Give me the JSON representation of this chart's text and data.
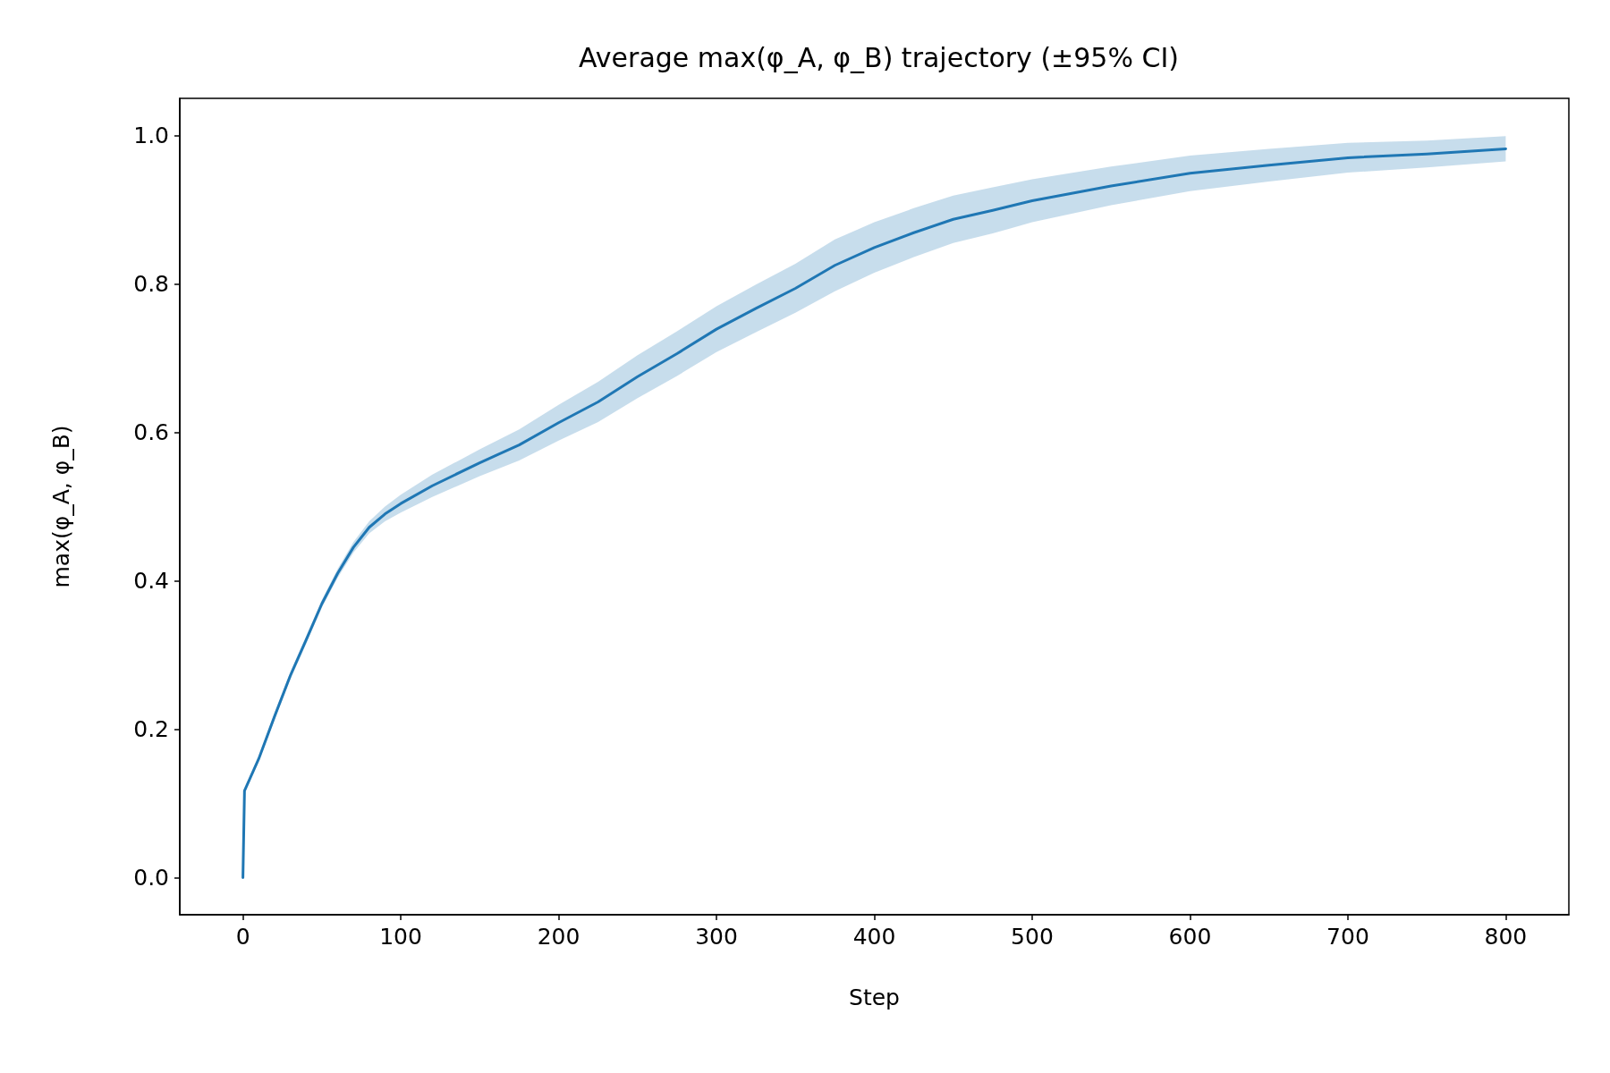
{
  "chart_data": {
    "type": "line",
    "title": "Average max(φ_A, φ_B) trajectory (±95% CI)",
    "xlabel": "Step",
    "ylabel": "max(φ_A, φ_B)",
    "x": [
      0,
      1,
      10,
      20,
      30,
      40,
      50,
      60,
      70,
      80,
      90,
      100,
      120,
      150,
      175,
      200,
      225,
      250,
      275,
      300,
      325,
      350,
      375,
      400,
      425,
      450,
      475,
      500,
      550,
      600,
      650,
      700,
      750,
      800
    ],
    "series": [
      {
        "color": "#1f77b4",
        "values": [
          0,
          0.117,
          0.16,
          0.217,
          0.272,
          0.32,
          0.369,
          0.41,
          0.445,
          0.472,
          0.49,
          0.504,
          0.528,
          0.559,
          0.583,
          0.613,
          0.641,
          0.675,
          0.706,
          0.739,
          0.767,
          0.794,
          0.825,
          0.849,
          0.869,
          0.887,
          0.899,
          0.912,
          0.932,
          0.949,
          0.96,
          0.97,
          0.975,
          0.982
        ],
        "lower": [
          0,
          0.115,
          0.157,
          0.213,
          0.267,
          0.315,
          0.364,
          0.404,
          0.438,
          0.464,
          0.48,
          0.492,
          0.513,
          0.541,
          0.562,
          0.589,
          0.614,
          0.646,
          0.676,
          0.708,
          0.735,
          0.761,
          0.79,
          0.815,
          0.836,
          0.855,
          0.868,
          0.883,
          0.906,
          0.925,
          0.938,
          0.95,
          0.957,
          0.965
        ],
        "upper": [
          0,
          0.119,
          0.163,
          0.221,
          0.277,
          0.325,
          0.374,
          0.416,
          0.452,
          0.48,
          0.5,
          0.516,
          0.543,
          0.577,
          0.604,
          0.637,
          0.668,
          0.704,
          0.736,
          0.77,
          0.799,
          0.827,
          0.86,
          0.883,
          0.902,
          0.919,
          0.93,
          0.941,
          0.958,
          0.973,
          0.982,
          0.99,
          0.993,
          0.999
        ]
      }
    ],
    "xlim": [
      -40,
      840
    ],
    "xticks": [
      0,
      100,
      200,
      300,
      400,
      500,
      600,
      700,
      800
    ],
    "ylim": [
      -0.05,
      1.05
    ],
    "yticks": [
      {
        "value": 0,
        "label": "0.0"
      },
      0.2,
      0.4,
      0.6,
      0.8,
      {
        "value": 1,
        "label": "1.0"
      }
    ],
    "marker": "none",
    "line_style": "solid"
  }
}
